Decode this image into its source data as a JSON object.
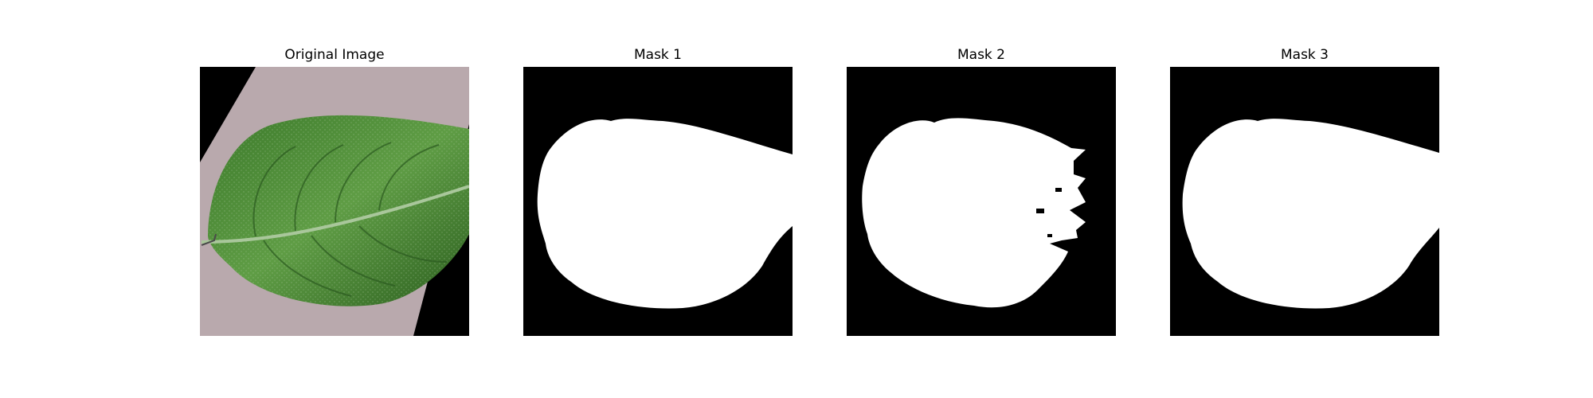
{
  "figure": {
    "panels": [
      {
        "title": "Original Image",
        "kind": "photo",
        "subject": "potato leaf on pinkish-gray background, rotated with black corners"
      },
      {
        "title": "Mask 1",
        "kind": "mask"
      },
      {
        "title": "Mask 2",
        "kind": "mask"
      },
      {
        "title": "Mask 3",
        "kind": "mask"
      }
    ],
    "colors": {
      "mask_background": "#000000",
      "mask_foreground": "#ffffff",
      "leaf_dark": "#2f6b22",
      "leaf_light": "#5f9d45",
      "photo_background": "#b9a9ad"
    }
  }
}
